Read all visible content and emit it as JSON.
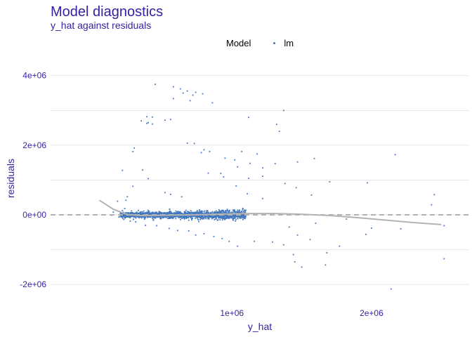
{
  "chart_data": {
    "type": "scatter",
    "title": "Model diagnostics",
    "subtitle": "y_hat against residuals",
    "xlabel": "y_hat",
    "ylabel": "residuals",
    "legend": {
      "title": "Model",
      "entries": [
        "lm"
      ],
      "position": "top"
    },
    "colors": {
      "points": "#4378bf",
      "smooth": "#b3b3b3",
      "zero_line": "#b3b3b3",
      "text": "#371ea3",
      "grid": "#e6e6e6"
    },
    "xlim": [
      -300000,
      2700000
    ],
    "ylim": [
      -2500000,
      4600000
    ],
    "x_ticks": [
      1000000,
      2000000
    ],
    "x_tick_labels": [
      "1e+06",
      "2e+06"
    ],
    "y_ticks": [
      -2000000,
      0,
      2000000,
      4000000
    ],
    "y_tick_labels": [
      "-2e+06",
      "0e+00",
      "2e+06",
      "4e+06"
    ],
    "grid": true,
    "reference_line": {
      "y": 0,
      "style": "dashed"
    },
    "smooth_line": {
      "x": [
        50000,
        150000,
        250000,
        350000,
        500000,
        700000,
        900000,
        1100000,
        1300000,
        1500000,
        1700000,
        1900000,
        2100000,
        2300000,
        2500000
      ],
      "y": [
        420000,
        160000,
        10000,
        -20000,
        -10000,
        0,
        20000,
        40000,
        40000,
        20000,
        -20000,
        -80000,
        -150000,
        -220000,
        -280000
      ]
    },
    "series": [
      {
        "name": "lm",
        "points": [
          [
            300000,
            1920000
          ],
          [
            290000,
            1820000
          ],
          [
            215000,
            1280000
          ],
          [
            360000,
            1290000
          ],
          [
            400000,
            1040000
          ],
          [
            290000,
            820000
          ],
          [
            390000,
            2820000
          ],
          [
            430000,
            2810000
          ],
          [
            450000,
            3750000
          ],
          [
            580000,
            3680000
          ],
          [
            630000,
            3620000
          ],
          [
            680000,
            3560000
          ],
          [
            740000,
            3520000
          ],
          [
            790000,
            3480000
          ],
          [
            650000,
            3500000
          ],
          [
            720000,
            3440000
          ],
          [
            860000,
            3220000
          ],
          [
            580000,
            3340000
          ],
          [
            700000,
            3280000
          ],
          [
            560000,
            2740000
          ],
          [
            520000,
            2720000
          ],
          [
            400000,
            2650000
          ],
          [
            350000,
            2700000
          ],
          [
            430000,
            2610000
          ],
          [
            390000,
            2630000
          ],
          [
            680000,
            2060000
          ],
          [
            730000,
            2050000
          ],
          [
            800000,
            1870000
          ],
          [
            780000,
            1790000
          ],
          [
            840000,
            1820000
          ],
          [
            1070000,
            1820000
          ],
          [
            1180000,
            1750000
          ],
          [
            950000,
            1630000
          ],
          [
            1020000,
            1580000
          ],
          [
            1130000,
            1480000
          ],
          [
            1040000,
            1380000
          ],
          [
            920000,
            1190000
          ],
          [
            830000,
            1200000
          ],
          [
            940000,
            1090000
          ],
          [
            1220000,
            1110000
          ],
          [
            1120000,
            1050000
          ],
          [
            1030000,
            830000
          ],
          [
            1370000,
            3000000
          ],
          [
            1320000,
            2600000
          ],
          [
            1340000,
            2400000
          ],
          [
            1120000,
            2800000
          ],
          [
            1590000,
            1620000
          ],
          [
            1470000,
            1520000
          ],
          [
            1310000,
            1470000
          ],
          [
            1220000,
            1350000
          ],
          [
            1380000,
            900000
          ],
          [
            1460000,
            780000
          ],
          [
            1700000,
            950000
          ],
          [
            1970000,
            920000
          ],
          [
            2170000,
            1730000
          ],
          [
            2450000,
            580000
          ],
          [
            2430000,
            290000
          ],
          [
            2520000,
            -310000
          ],
          [
            2520000,
            -1260000
          ],
          [
            2140000,
            -2130000
          ],
          [
            1670000,
            -1440000
          ],
          [
            1770000,
            -900000
          ],
          [
            1500000,
            -1500000
          ],
          [
            1450000,
            -1350000
          ],
          [
            1440000,
            -1140000
          ],
          [
            1370000,
            -860000
          ],
          [
            1290000,
            -780000
          ],
          [
            1160000,
            -760000
          ],
          [
            1040000,
            -900000
          ],
          [
            980000,
            -760000
          ],
          [
            930000,
            -680000
          ],
          [
            870000,
            -620000
          ],
          [
            800000,
            -540000
          ],
          [
            740000,
            -580000
          ],
          [
            690000,
            -460000
          ],
          [
            610000,
            -450000
          ],
          [
            550000,
            -390000
          ],
          [
            460000,
            -310000
          ],
          [
            380000,
            -300000
          ],
          [
            310000,
            -200000
          ],
          [
            190000,
            -60000
          ],
          [
            140000,
            -10000
          ],
          [
            150000,
            80000
          ],
          [
            180000,
            390000
          ],
          [
            250000,
            520000
          ],
          [
            240000,
            420000
          ],
          [
            520000,
            640000
          ],
          [
            560000,
            590000
          ],
          [
            640000,
            520000
          ],
          [
            1110000,
            610000
          ],
          [
            1220000,
            470000
          ],
          [
            1570000,
            570000
          ],
          [
            1470000,
            -580000
          ],
          [
            1560000,
            -710000
          ],
          [
            1680000,
            -1090000
          ],
          [
            1410000,
            -350000
          ],
          [
            1600000,
            -240000
          ],
          [
            1820000,
            -120000
          ],
          [
            1960000,
            -560000
          ],
          [
            2000000,
            -380000
          ],
          [
            2210000,
            -400000
          ]
        ],
        "dense_cluster": {
          "x_range": [
            200000,
            1100000
          ],
          "y_range": [
            -300000,
            400000
          ],
          "n_points": 2400
        }
      }
    ]
  }
}
